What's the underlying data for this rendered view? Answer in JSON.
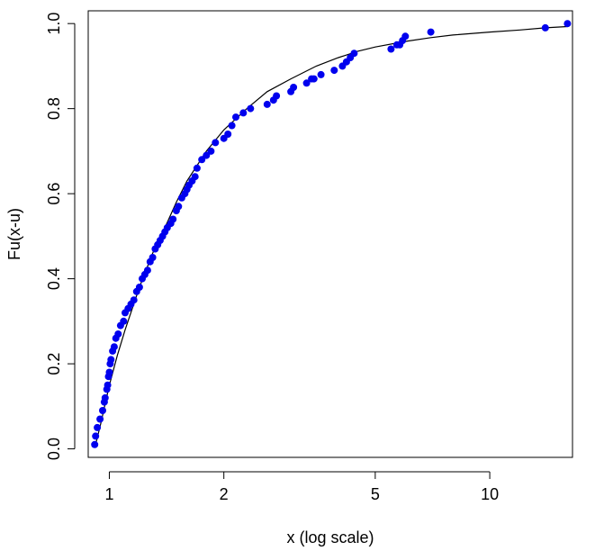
{
  "chart_data": {
    "type": "scatter",
    "title": "",
    "xlabel": "x (log scale)",
    "ylabel": "Fu(x-u)",
    "x_scale": "log",
    "xlim": [
      0.88,
      16.5
    ],
    "ylim": [
      -0.02,
      1.03
    ],
    "x_ticks": [
      1,
      2,
      5,
      10
    ],
    "x_tick_labels": [
      "1",
      "2",
      "5",
      "10"
    ],
    "y_ticks": [
      0.0,
      0.2,
      0.4,
      0.6,
      0.8,
      1.0
    ],
    "y_tick_labels": [
      "0.0",
      "0.2",
      "0.4",
      "0.6",
      "0.8",
      "1.0"
    ],
    "grid": false,
    "point_color": "#0000ee",
    "line_color": "#000000",
    "series": [
      {
        "kind": "points",
        "x": [
          0.915,
          0.92,
          0.93,
          0.945,
          0.96,
          0.97,
          0.975,
          0.985,
          0.99,
          0.995,
          1.0,
          1.005,
          1.01,
          1.02,
          1.03,
          1.04,
          1.055,
          1.07,
          1.09,
          1.1,
          1.12,
          1.14,
          1.16,
          1.18,
          1.2,
          1.22,
          1.24,
          1.26,
          1.28,
          1.3,
          1.32,
          1.34,
          1.36,
          1.38,
          1.4,
          1.42,
          1.45,
          1.47,
          1.5,
          1.52,
          1.55,
          1.58,
          1.6,
          1.62,
          1.65,
          1.68,
          1.7,
          1.75,
          1.8,
          1.85,
          1.9,
          2.0,
          2.05,
          2.1,
          2.15,
          2.25,
          2.35,
          2.6,
          2.7,
          2.75,
          3.0,
          3.05,
          3.3,
          3.4,
          3.45,
          3.6,
          3.9,
          4.1,
          4.2,
          4.3,
          4.4,
          5.5,
          5.7,
          5.8,
          5.9,
          6.0,
          7.0,
          14.0,
          16.0
        ],
        "y": [
          0.01,
          0.03,
          0.05,
          0.07,
          0.09,
          0.11,
          0.12,
          0.14,
          0.15,
          0.17,
          0.18,
          0.2,
          0.21,
          0.23,
          0.24,
          0.26,
          0.27,
          0.29,
          0.3,
          0.32,
          0.33,
          0.34,
          0.35,
          0.37,
          0.38,
          0.4,
          0.41,
          0.42,
          0.44,
          0.45,
          0.47,
          0.48,
          0.49,
          0.5,
          0.51,
          0.52,
          0.53,
          0.54,
          0.56,
          0.57,
          0.59,
          0.6,
          0.61,
          0.62,
          0.63,
          0.64,
          0.66,
          0.68,
          0.69,
          0.7,
          0.72,
          0.73,
          0.74,
          0.76,
          0.78,
          0.79,
          0.8,
          0.81,
          0.82,
          0.83,
          0.84,
          0.85,
          0.86,
          0.87,
          0.87,
          0.88,
          0.89,
          0.9,
          0.91,
          0.92,
          0.93,
          0.94,
          0.95,
          0.95,
          0.96,
          0.97,
          0.98,
          0.99,
          1.0
        ]
      },
      {
        "kind": "curve",
        "x": [
          0.92,
          0.95,
          1.0,
          1.05,
          1.1,
          1.2,
          1.3,
          1.4,
          1.5,
          1.6,
          1.8,
          2.0,
          2.3,
          2.6,
          3.0,
          3.5,
          4.0,
          4.5,
          5.0,
          6.0,
          7.0,
          8.0,
          10.0,
          12.0,
          14.0,
          16.0
        ],
        "y": [
          0.01,
          0.06,
          0.15,
          0.22,
          0.28,
          0.38,
          0.46,
          0.52,
          0.58,
          0.63,
          0.7,
          0.75,
          0.8,
          0.84,
          0.87,
          0.9,
          0.92,
          0.935,
          0.945,
          0.958,
          0.967,
          0.973,
          0.98,
          0.985,
          0.99,
          0.993
        ]
      }
    ]
  }
}
